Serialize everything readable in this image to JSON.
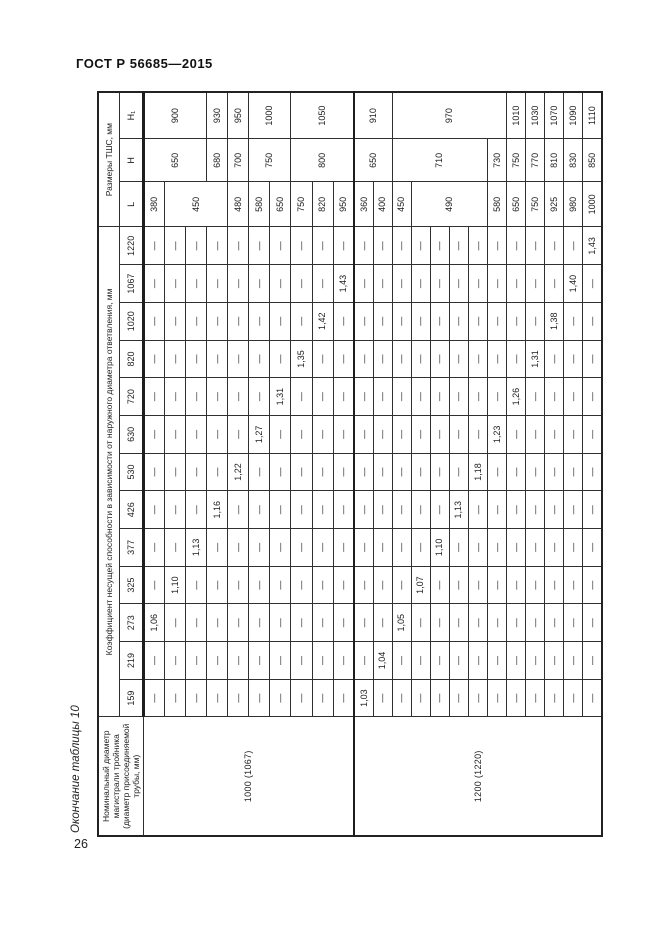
{
  "page": {
    "header": "ГОСТ Р 56685—2015",
    "table_caption": "Окончание таблицы 10",
    "page_number": "26"
  },
  "table": {
    "col_a_header": "Номинальный диаметр магистрали тройника (диаметр присоединяемой трубы, мм)",
    "coef_header": "Коэффициент несущей способности в зависимости от наружного диаметра ответвления, мм",
    "sizes_header": "Размеры ТШС, мм",
    "branch_diameters": [
      "159",
      "219",
      "273",
      "325",
      "377",
      "426",
      "530",
      "630",
      "720",
      "820",
      "1020",
      "1067",
      "1220"
    ],
    "size_cols": [
      "L",
      "H",
      "H₁"
    ],
    "dash": "—",
    "groups": [
      {
        "label": "1000 (1067)",
        "rows": [
          {
            "branch_index": 2,
            "k": "1,06"
          },
          {
            "branch_index": 3,
            "k": "1,10"
          },
          {
            "branch_index": 4,
            "k": "1,13"
          },
          {
            "branch_index": 5,
            "k": "1,16"
          },
          {
            "branch_index": 6,
            "k": "1,22"
          },
          {
            "branch_index": 7,
            "k": "1,27"
          },
          {
            "branch_index": 8,
            "k": "1,31"
          },
          {
            "branch_index": 9,
            "k": "1,35"
          },
          {
            "branch_index": 10,
            "k": "1,42"
          },
          {
            "branch_index": 11,
            "k": "1,43"
          }
        ],
        "L": [
          {
            "v": "380",
            "span": 1
          },
          {
            "v": "450",
            "span": 3
          },
          {
            "v": "480",
            "span": 1
          },
          {
            "v": "580",
            "span": 1
          },
          {
            "v": "650",
            "span": 1
          },
          {
            "v": "750",
            "span": 1
          },
          {
            "v": "820",
            "span": 1
          },
          {
            "v": "950",
            "span": 1
          }
        ],
        "H": [
          {
            "v": "650",
            "span": 3
          },
          {
            "v": "680",
            "span": 1
          },
          {
            "v": "700",
            "span": 1
          },
          {
            "v": "750",
            "span": 2
          },
          {
            "v": "800",
            "span": 3
          }
        ],
        "H1": [
          {
            "v": "900",
            "span": 3
          },
          {
            "v": "930",
            "span": 1
          },
          {
            "v": "950",
            "span": 1
          },
          {
            "v": "1000",
            "span": 2
          },
          {
            "v": "1050",
            "span": 3
          }
        ]
      },
      {
        "label": "1200 (1220)",
        "rows": [
          {
            "branch_index": 0,
            "k": "1,03"
          },
          {
            "branch_index": 1,
            "k": "1,04"
          },
          {
            "branch_index": 2,
            "k": "1,05"
          },
          {
            "branch_index": 3,
            "k": "1,07"
          },
          {
            "branch_index": 4,
            "k": "1,10"
          },
          {
            "branch_index": 5,
            "k": "1,13"
          },
          {
            "branch_index": 6,
            "k": "1,18"
          },
          {
            "branch_index": 7,
            "k": "1,23"
          },
          {
            "branch_index": 8,
            "k": "1,26"
          },
          {
            "branch_index": 9,
            "k": "1,31"
          },
          {
            "branch_index": 10,
            "k": "1,38"
          },
          {
            "branch_index": 11,
            "k": "1,40"
          },
          {
            "branch_index": 12,
            "k": "1,43"
          }
        ],
        "L": [
          {
            "v": "360",
            "span": 1
          },
          {
            "v": "400",
            "span": 1
          },
          {
            "v": "450",
            "span": 1
          },
          {
            "v": "490",
            "span": 4
          },
          {
            "v": "580",
            "span": 1
          },
          {
            "v": "650",
            "span": 1
          },
          {
            "v": "750",
            "span": 1
          },
          {
            "v": "925",
            "span": 1
          },
          {
            "v": "980",
            "span": 1
          },
          {
            "v": "1000",
            "span": 1
          }
        ],
        "H": [
          {
            "v": "650",
            "span": 2
          },
          {
            "v": "710",
            "span": 5
          },
          {
            "v": "730",
            "span": 1
          },
          {
            "v": "750",
            "span": 1
          },
          {
            "v": "770",
            "span": 1
          },
          {
            "v": "810",
            "span": 1
          },
          {
            "v": "830",
            "span": 1
          },
          {
            "v": "850",
            "span": 1
          }
        ],
        "H1": [
          {
            "v": "910",
            "span": 2
          },
          {
            "v": "970",
            "span": 6
          },
          {
            "v": "1010",
            "span": 1
          },
          {
            "v": "1030",
            "span": 1
          },
          {
            "v": "1070",
            "span": 1
          },
          {
            "v": "1090",
            "span": 1
          },
          {
            "v": "1110",
            "span": 1
          }
        ]
      }
    ]
  }
}
